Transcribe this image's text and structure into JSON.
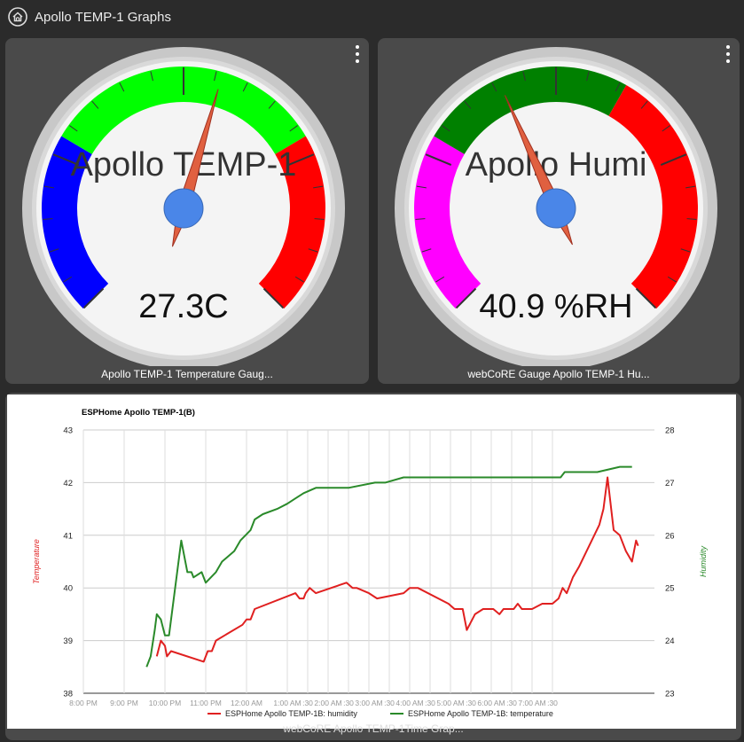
{
  "header": {
    "title": "Apollo TEMP-1 Graphs",
    "icon": "home-icon"
  },
  "gauges": [
    {
      "label": "Apollo TEMP-1",
      "value_text": "27.3C",
      "caption": "Apollo TEMP-1 Temperature Gaug...",
      "bands": [
        {
          "color": "#0000ff",
          "from": 0,
          "to": 0.28
        },
        {
          "color": "#00ff00",
          "from": 0.28,
          "to": 0.72
        },
        {
          "color": "#ff0000",
          "from": 0.72,
          "to": 1.0
        }
      ],
      "needle": 0.56
    },
    {
      "label": "Apollo Humi",
      "value_text": "40.9 %RH",
      "caption": "webCoRE Gauge Apollo TEMP-1 Hu...",
      "bands": [
        {
          "color": "#ff00ff",
          "from": 0,
          "to": 0.28
        },
        {
          "color": "#008000",
          "from": 0.28,
          "to": 0.61
        },
        {
          "color": "#ff0000",
          "from": 0.61,
          "to": 1.0
        }
      ],
      "needle": 0.41
    }
  ],
  "chart_tile": {
    "caption": "webCoRE Apollo TEMP-1Time Grap..."
  },
  "chart_data": {
    "type": "line",
    "title": "ESPHome Apollo TEMP-1(B)",
    "ylabel": "Temperature",
    "y2label": "Humidity",
    "ylim": [
      38,
      43
    ],
    "y2lim": [
      23,
      28
    ],
    "xlim": [
      0,
      28
    ],
    "yticks": [
      "43",
      "42",
      "41",
      "40",
      "39",
      "38"
    ],
    "y2ticks": [
      "28",
      "27",
      "26",
      "25",
      "24",
      "23"
    ],
    "xticks": [
      {
        "x": 0,
        "label": "8:00 PM"
      },
      {
        "x": 2,
        "label": "9:00 PM"
      },
      {
        "x": 4,
        "label": "10:00 PM"
      },
      {
        "x": 6,
        "label": "11:00 PM"
      },
      {
        "x": 8,
        "label": "12:00 AM"
      },
      {
        "x": 10,
        "label": "1:00 AM"
      },
      {
        "x": 11,
        "label": ":30"
      },
      {
        "x": 12,
        "label": "2:00 AM"
      },
      {
        "x": 13,
        "label": ":30"
      },
      {
        "x": 14,
        "label": "3:00 AM"
      },
      {
        "x": 15,
        "label": ":30"
      },
      {
        "x": 16,
        "label": "4:00 AM"
      },
      {
        "x": 17,
        "label": ":30"
      },
      {
        "x": 18,
        "label": "5:00 AM"
      },
      {
        "x": 19,
        "label": ":30"
      },
      {
        "x": 20,
        "label": "6:00 AM"
      },
      {
        "x": 21,
        "label": ":30"
      },
      {
        "x": 22,
        "label": "7:00 AM"
      },
      {
        "x": 23,
        "label": ":30"
      }
    ],
    "series": [
      {
        "name": "ESPHome Apollo TEMP-1B: humidity",
        "color": "#e02020",
        "axis": "left",
        "points": [
          [
            3.6,
            38.7
          ],
          [
            3.8,
            39.0
          ],
          [
            4.0,
            38.9
          ],
          [
            4.1,
            38.7
          ],
          [
            4.3,
            38.8
          ],
          [
            5.9,
            38.6
          ],
          [
            6.1,
            38.8
          ],
          [
            6.3,
            38.8
          ],
          [
            6.5,
            39.0
          ],
          [
            7.8,
            39.3
          ],
          [
            8.0,
            39.4
          ],
          [
            8.2,
            39.4
          ],
          [
            8.4,
            39.6
          ],
          [
            10.4,
            39.9
          ],
          [
            10.6,
            39.8
          ],
          [
            10.8,
            39.8
          ],
          [
            10.9,
            39.9
          ],
          [
            11.1,
            40.0
          ],
          [
            11.4,
            39.9
          ],
          [
            12.9,
            40.1
          ],
          [
            13.2,
            40.0
          ],
          [
            13.4,
            40.0
          ],
          [
            14.0,
            39.9
          ],
          [
            14.4,
            39.8
          ],
          [
            15.7,
            39.9
          ],
          [
            16.0,
            40.0
          ],
          [
            16.4,
            40.0
          ],
          [
            17.9,
            39.7
          ],
          [
            18.2,
            39.6
          ],
          [
            18.6,
            39.6
          ],
          [
            18.8,
            39.2
          ],
          [
            19.2,
            39.5
          ],
          [
            19.6,
            39.6
          ],
          [
            20.1,
            39.6
          ],
          [
            20.4,
            39.5
          ],
          [
            20.6,
            39.6
          ],
          [
            20.9,
            39.6
          ],
          [
            21.1,
            39.6
          ],
          [
            21.3,
            39.7
          ],
          [
            21.5,
            39.6
          ],
          [
            22.0,
            39.6
          ],
          [
            22.5,
            39.7
          ],
          [
            23.0,
            39.7
          ],
          [
            23.3,
            39.8
          ],
          [
            23.5,
            40.0
          ],
          [
            23.7,
            39.9
          ],
          [
            24.0,
            40.2
          ],
          [
            24.3,
            40.4
          ],
          [
            24.8,
            40.8
          ],
          [
            25.3,
            41.2
          ],
          [
            25.5,
            41.5
          ],
          [
            25.7,
            42.1
          ],
          [
            26.0,
            41.1
          ],
          [
            26.3,
            41.0
          ],
          [
            26.6,
            40.7
          ],
          [
            26.9,
            40.5
          ],
          [
            27.1,
            40.9
          ],
          [
            27.2,
            40.8
          ]
        ]
      },
      {
        "name": "ESPHome Apollo TEMP-1B: temperature",
        "color": "#2a8a2a",
        "axis": "right",
        "points": [
          [
            3.1,
            23.5
          ],
          [
            3.3,
            23.7
          ],
          [
            3.5,
            24.2
          ],
          [
            3.6,
            24.5
          ],
          [
            3.8,
            24.4
          ],
          [
            4.0,
            24.1
          ],
          [
            4.2,
            24.1
          ],
          [
            4.8,
            25.9
          ],
          [
            5.1,
            25.3
          ],
          [
            5.3,
            25.3
          ],
          [
            5.4,
            25.2
          ],
          [
            5.8,
            25.3
          ],
          [
            6.0,
            25.1
          ],
          [
            6.5,
            25.3
          ],
          [
            6.8,
            25.5
          ],
          [
            7.4,
            25.7
          ],
          [
            7.7,
            25.9
          ],
          [
            8.2,
            26.1
          ],
          [
            8.4,
            26.3
          ],
          [
            8.8,
            26.4
          ],
          [
            9.5,
            26.5
          ],
          [
            10.0,
            26.6
          ],
          [
            10.4,
            26.7
          ],
          [
            10.8,
            26.8
          ],
          [
            11.4,
            26.9
          ],
          [
            12.0,
            26.9
          ],
          [
            13.0,
            26.9
          ],
          [
            14.3,
            27.0
          ],
          [
            14.5,
            27.0
          ],
          [
            14.8,
            27.0
          ],
          [
            15.7,
            27.1
          ],
          [
            17.5,
            27.1
          ],
          [
            20.0,
            27.1
          ],
          [
            23.4,
            27.1
          ],
          [
            23.6,
            27.2
          ],
          [
            24.1,
            27.2
          ],
          [
            24.3,
            27.2
          ],
          [
            24.6,
            27.2
          ],
          [
            25.2,
            27.2
          ],
          [
            26.3,
            27.3
          ],
          [
            26.6,
            27.3
          ],
          [
            26.8,
            27.3
          ],
          [
            26.9,
            27.3
          ]
        ]
      }
    ],
    "legend_position": "bottom",
    "grid": true
  }
}
